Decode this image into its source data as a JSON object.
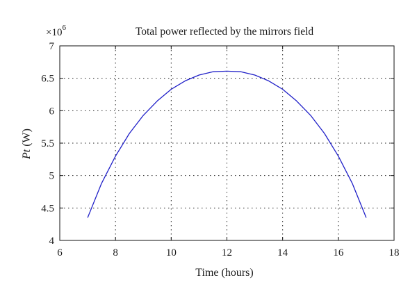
{
  "chart_data": {
    "type": "line",
    "title": "Total power reflected by the mirrors field",
    "xlabel": "Time (hours)",
    "ylabel_italic": "Pt",
    "ylabel_unit": " (W)",
    "multiplier_base": "×10",
    "multiplier_exp": "6",
    "xlim": [
      6,
      18
    ],
    "ylim": [
      4,
      7
    ],
    "xticks": [
      6,
      8,
      10,
      12,
      14,
      16,
      18
    ],
    "xtick_labels": [
      "6",
      "8",
      "10",
      "12",
      "14",
      "16",
      "18"
    ],
    "yticks": [
      4,
      4.5,
      5,
      5.5,
      6,
      6.5,
      7
    ],
    "ytick_labels": [
      "4",
      "4.5",
      "5",
      "5.5",
      "6",
      "6.5",
      "7"
    ],
    "grid": true,
    "series": [
      {
        "color": "#1f1fc8",
        "x": [
          7,
          7.5,
          8,
          8.5,
          9,
          9.5,
          10,
          10.5,
          11,
          11.5,
          12,
          12.5,
          13,
          13.5,
          14,
          14.5,
          15,
          15.5,
          16,
          16.5,
          17
        ],
        "y": [
          4.35,
          4.88,
          5.3,
          5.65,
          5.93,
          6.15,
          6.33,
          6.46,
          6.55,
          6.6,
          6.61,
          6.6,
          6.55,
          6.46,
          6.33,
          6.15,
          5.93,
          5.65,
          5.3,
          4.88,
          4.35
        ]
      }
    ]
  }
}
